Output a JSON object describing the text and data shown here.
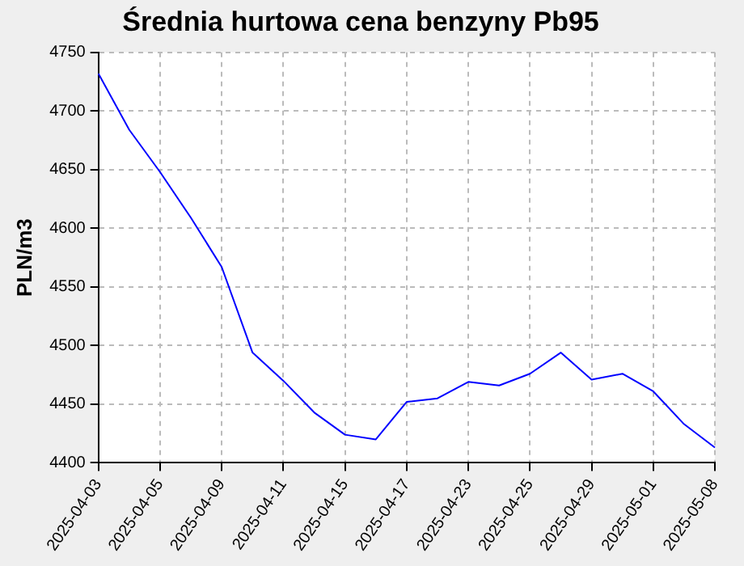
{
  "chart_data": {
    "type": "line",
    "title": "Średnia hurtowa cena benzyny Pb95",
    "ylabel": "PLN/m3",
    "categories": [
      "2025-04-03",
      null,
      "2025-04-05",
      null,
      "2025-04-09",
      null,
      "2025-04-11",
      null,
      "2025-04-15",
      null,
      "2025-04-17",
      null,
      "2025-04-23",
      null,
      "2025-04-25",
      null,
      "2025-04-29",
      null,
      "2025-05-01",
      null,
      "2025-05-08"
    ],
    "series": [
      {
        "color": "#0000ff",
        "values": [
          4732,
          4684,
          4648,
          4609,
          4567,
          4494,
          4470,
          4443,
          4424,
          4420,
          4452,
          4455,
          4469,
          4466,
          4476,
          4494,
          4471,
          4476,
          4461,
          4433,
          4413
        ]
      }
    ],
    "ylim": [
      4400,
      4750
    ],
    "yticks": [
      4400,
      4450,
      4500,
      4550,
      4600,
      4650,
      4700,
      4750
    ],
    "grid": true,
    "legend": false,
    "marker": "none",
    "line_style": "solid"
  }
}
